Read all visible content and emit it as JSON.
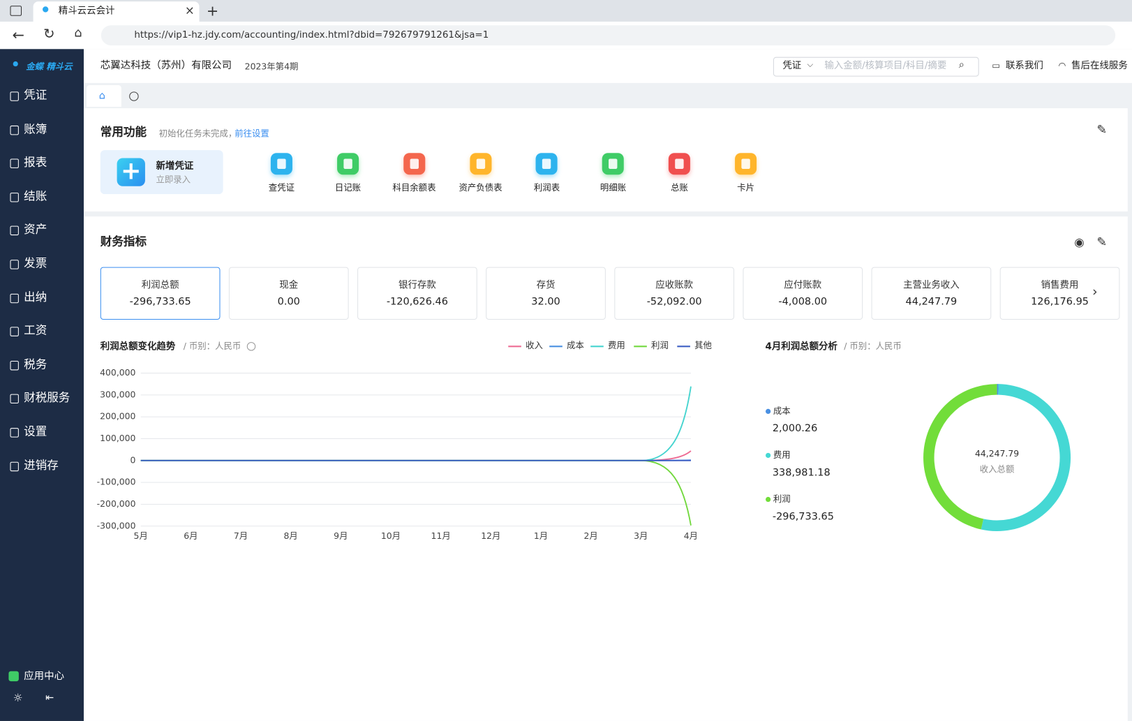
{
  "browser": {
    "tab_title": "精斗云云会计",
    "url": "https://vip1-hz.jdy.com/accounting/index.html?dbid=792679791261&jsa=1"
  },
  "sidebar": {
    "logo": "金蝶 精斗云",
    "menu": [
      "凭证",
      "账簿",
      "报表",
      "结账",
      "资产",
      "发票",
      "出纳",
      "工资",
      "税务",
      "财税服务",
      "设置",
      "进销存"
    ],
    "app_center": "应用中心"
  },
  "header": {
    "company": "芯翼达科技（苏州）有限公司",
    "period": "2023年第4期",
    "search_type": "凭证",
    "search_placeholder": "输入金额/核算项目/科目/摘要",
    "contact": "联系我们",
    "service": "售后在线服务"
  },
  "common": {
    "title": "常用功能",
    "hint": "初始化任务未完成，",
    "hint_link": "前往设置",
    "new_voucher": {
      "title": "新增凭证",
      "subtitle": "立即录入"
    },
    "items": [
      {
        "label": "查凭证",
        "color": "#2db3ee"
      },
      {
        "label": "日记账",
        "color": "#3fcc66"
      },
      {
        "label": "科目余额表",
        "color": "#f4664d"
      },
      {
        "label": "资产负债表",
        "color": "#ffb52b"
      },
      {
        "label": "利润表",
        "color": "#2db3ee"
      },
      {
        "label": "明细账",
        "color": "#3fcc66"
      },
      {
        "label": "总账",
        "color": "#f04f4f"
      },
      {
        "label": "卡片",
        "color": "#ffb52b"
      }
    ]
  },
  "indicators": {
    "title": "财务指标",
    "cards": [
      {
        "name": "利润总额",
        "value": "-296,733.65"
      },
      {
        "name": "现金",
        "value": "0.00"
      },
      {
        "name": "银行存款",
        "value": "-120,626.46"
      },
      {
        "name": "存货",
        "value": "32.00"
      },
      {
        "name": "应收账款",
        "value": "-52,092.00"
      },
      {
        "name": "应付账款",
        "value": "-4,008.00"
      },
      {
        "name": "主营业务收入",
        "value": "44,247.79"
      },
      {
        "name": "销售费用",
        "value": "126,176.95"
      }
    ]
  },
  "chart_data": [
    {
      "type": "line",
      "title": "利润总额变化趋势",
      "subtitle": "/ 币别：人民币",
      "categories": [
        "5月",
        "6月",
        "7月",
        "8月",
        "9月",
        "10月",
        "11月",
        "12月",
        "1月",
        "2月",
        "3月",
        "4月"
      ],
      "series": [
        {
          "name": "收入",
          "color": "#ee6c94",
          "values": [
            0,
            0,
            0,
            0,
            0,
            0,
            0,
            0,
            0,
            0,
            0,
            44247.79
          ]
        },
        {
          "name": "成本",
          "color": "#4a90e2",
          "values": [
            0,
            0,
            0,
            0,
            0,
            0,
            0,
            0,
            0,
            0,
            0,
            2000.26
          ]
        },
        {
          "name": "费用",
          "color": "#45d4cf",
          "values": [
            0,
            0,
            0,
            0,
            0,
            0,
            0,
            0,
            0,
            0,
            0,
            338981.18
          ]
        },
        {
          "name": "利润",
          "color": "#72d83e",
          "values": [
            0,
            0,
            0,
            0,
            0,
            0,
            0,
            0,
            0,
            0,
            0,
            -296733.65
          ]
        },
        {
          "name": "其他",
          "color": "#3d5fc4",
          "values": [
            0,
            0,
            0,
            0,
            0,
            0,
            0,
            0,
            0,
            0,
            0,
            0
          ]
        }
      ],
      "ylim": [
        -300000,
        400000
      ],
      "yticks": [
        {
          "value": -300000,
          "label": "-300,000"
        },
        {
          "value": -200000,
          "label": "-200,000"
        },
        {
          "value": -100000,
          "label": "-100,000"
        },
        0,
        {
          "value": 100000,
          "label": "100,000"
        },
        {
          "value": 200000,
          "label": "200,000"
        },
        {
          "value": 300000,
          "label": "300,000"
        },
        {
          "value": 400000,
          "label": "400,000"
        }
      ],
      "grid": true
    },
    {
      "type": "pie",
      "title": "4月利润总额分析",
      "subtitle": "/ 币别：人民币",
      "categories": [
        "成本",
        "费用",
        "利润"
      ],
      "values": [
        2000.26,
        338981.18,
        -296733.65
      ],
      "value_labels": [
        "2,000.26",
        "338,981.18",
        "-296,733.65"
      ],
      "colors": [
        "#4a90e2",
        "#45d8d4",
        "#72dd3a"
      ],
      "center_value": "44,247.79",
      "center_label": "收入总额"
    }
  ]
}
